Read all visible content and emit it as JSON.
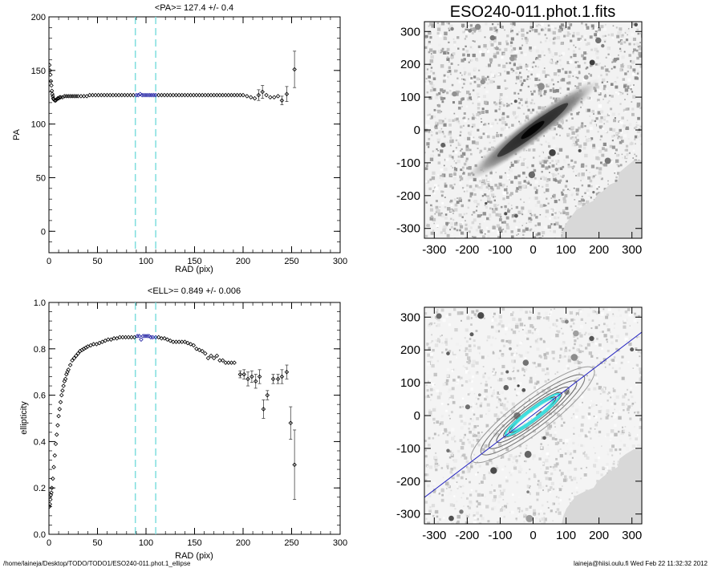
{
  "footer": {
    "path": "/home/laineja/Desktop/TODO/TODO1/ESO240-011.phot.1_ellipse",
    "user_date": "laineja@hiisi.oulu.fi  Wed Feb 22 11:32:32 2012"
  },
  "image_panels": {
    "title": "ESO240-011.phot.1.fits",
    "ticks": [
      "-300",
      "-200",
      "-100",
      "0",
      "100",
      "200",
      "300"
    ]
  },
  "colors": {
    "point": "#000000",
    "highlight": "#1a1aa0",
    "vline": "#7fdede",
    "majoraxis": "#2020c0",
    "contour_inner": "#40e0e0",
    "mask": "#d8d8d8"
  },
  "chart_data": [
    {
      "type": "scatter",
      "title": "<PA>= 127.4 +/-   0.4",
      "xlabel": "RAD (pix)",
      "ylabel": "PA",
      "xlim": [
        0,
        300
      ],
      "ylim": [
        -20,
        200
      ],
      "xticks": [
        "0",
        "50",
        "100",
        "150",
        "200",
        "250",
        "300"
      ],
      "yticks": [
        "0",
        "50",
        "100",
        "150",
        "200"
      ],
      "vlines": [
        89,
        110
      ],
      "highlight_range": [
        90,
        110
      ],
      "points": [
        [
          0.5,
          155
        ],
        [
          1,
          150
        ],
        [
          1.5,
          146
        ],
        [
          2,
          140
        ],
        [
          2.5,
          136
        ],
        [
          3,
          131
        ],
        [
          3.5,
          128
        ],
        [
          4,
          126
        ],
        [
          4.5,
          124
        ],
        [
          5,
          123
        ],
        [
          6,
          122
        ],
        [
          7,
          122
        ],
        [
          8,
          123
        ],
        [
          9,
          124
        ],
        [
          10,
          124
        ],
        [
          11,
          125
        ],
        [
          12,
          125
        ],
        [
          14,
          125
        ],
        [
          16,
          126
        ],
        [
          18,
          126
        ],
        [
          20,
          126
        ],
        [
          22,
          126
        ],
        [
          24,
          126
        ],
        [
          26,
          126
        ],
        [
          28,
          126
        ],
        [
          30,
          126
        ],
        [
          33,
          126
        ],
        [
          36,
          126
        ],
        [
          39,
          126
        ],
        [
          42,
          127
        ],
        [
          45,
          127
        ],
        [
          48,
          127
        ],
        [
          51,
          127
        ],
        [
          54,
          127
        ],
        [
          57,
          127
        ],
        [
          60,
          127
        ],
        [
          63,
          127
        ],
        [
          66,
          127
        ],
        [
          69,
          127
        ],
        [
          72,
          127
        ],
        [
          75,
          127
        ],
        [
          78,
          127
        ],
        [
          81,
          127
        ],
        [
          84,
          127
        ],
        [
          87,
          127
        ],
        [
          90,
          127
        ],
        [
          92,
          127
        ],
        [
          94,
          128
        ],
        [
          96,
          127
        ],
        [
          98,
          127
        ],
        [
          100,
          127
        ],
        [
          102,
          127
        ],
        [
          104,
          127
        ],
        [
          106,
          127
        ],
        [
          108,
          127
        ],
        [
          110,
          127
        ],
        [
          113,
          127
        ],
        [
          116,
          127
        ],
        [
          119,
          127
        ],
        [
          122,
          127
        ],
        [
          125,
          127
        ],
        [
          128,
          127
        ],
        [
          131,
          127
        ],
        [
          134,
          127
        ],
        [
          137,
          127
        ],
        [
          140,
          127
        ],
        [
          143,
          127
        ],
        [
          146,
          127
        ],
        [
          149,
          127
        ],
        [
          152,
          127
        ],
        [
          155,
          127
        ],
        [
          158,
          127
        ],
        [
          161,
          127
        ],
        [
          164,
          127
        ],
        [
          167,
          127
        ],
        [
          170,
          127
        ],
        [
          173,
          127
        ],
        [
          176,
          127
        ],
        [
          179,
          127
        ],
        [
          182,
          127
        ],
        [
          185,
          127
        ],
        [
          188,
          127
        ],
        [
          191,
          127
        ],
        [
          194,
          127
        ],
        [
          197,
          127
        ],
        [
          200,
          127
        ],
        [
          204,
          126
        ],
        [
          208,
          125
        ],
        [
          212,
          124
        ],
        [
          216,
          127
        ],
        [
          220,
          130
        ],
        [
          224,
          127
        ],
        [
          228,
          125
        ],
        [
          232,
          125
        ],
        [
          236,
          126
        ],
        [
          240,
          122
        ],
        [
          245,
          128
        ],
        [
          253,
          151
        ]
      ],
      "errors": [
        [
          216,
          127,
          5
        ],
        [
          220,
          130,
          6
        ],
        [
          240,
          122,
          4
        ],
        [
          245,
          128,
          7
        ],
        [
          253,
          151,
          17
        ]
      ]
    },
    {
      "type": "scatter",
      "title": "<ELL>= 0.849 +/-  0.006",
      "xlabel": "RAD (pix)",
      "ylabel": "ellipticity",
      "xlim": [
        0,
        300
      ],
      "ylim": [
        0.0,
        1.0
      ],
      "xticks": [
        "0",
        "50",
        "100",
        "150",
        "200",
        "250",
        "300"
      ],
      "yticks": [
        "0.0",
        "0.2",
        "0.4",
        "0.6",
        "0.8",
        "1.0"
      ],
      "vlines": [
        89,
        110
      ],
      "highlight_range": [
        90,
        110
      ],
      "points": [
        [
          0.5,
          0.12
        ],
        [
          1,
          0.13
        ],
        [
          1.5,
          0.15
        ],
        [
          2,
          0.17
        ],
        [
          2.5,
          0.18
        ],
        [
          3,
          0.2
        ],
        [
          4,
          0.24
        ],
        [
          5,
          0.29
        ],
        [
          6,
          0.34
        ],
        [
          7,
          0.39
        ],
        [
          8,
          0.43
        ],
        [
          9,
          0.47
        ],
        [
          10,
          0.51
        ],
        [
          11,
          0.54
        ],
        [
          12,
          0.57
        ],
        [
          13,
          0.6
        ],
        [
          14,
          0.62
        ],
        [
          15,
          0.64
        ],
        [
          16,
          0.66
        ],
        [
          17,
          0.67
        ],
        [
          18,
          0.69
        ],
        [
          19,
          0.7
        ],
        [
          20,
          0.71
        ],
        [
          22,
          0.73
        ],
        [
          24,
          0.75
        ],
        [
          26,
          0.76
        ],
        [
          28,
          0.77
        ],
        [
          30,
          0.78
        ],
        [
          32,
          0.79
        ],
        [
          34,
          0.795
        ],
        [
          36,
          0.8
        ],
        [
          38,
          0.805
        ],
        [
          40,
          0.81
        ],
        [
          43,
          0.815
        ],
        [
          46,
          0.82
        ],
        [
          49,
          0.82
        ],
        [
          52,
          0.825
        ],
        [
          55,
          0.83
        ],
        [
          58,
          0.835
        ],
        [
          61,
          0.84
        ],
        [
          64,
          0.84
        ],
        [
          67,
          0.845
        ],
        [
          70,
          0.845
        ],
        [
          73,
          0.85
        ],
        [
          76,
          0.85
        ],
        [
          79,
          0.85
        ],
        [
          82,
          0.85
        ],
        [
          85,
          0.85
        ],
        [
          88,
          0.85
        ],
        [
          91,
          0.855
        ],
        [
          93,
          0.855
        ],
        [
          95,
          0.84
        ],
        [
          97,
          0.855
        ],
        [
          99,
          0.855
        ],
        [
          101,
          0.855
        ],
        [
          103,
          0.855
        ],
        [
          105,
          0.85
        ],
        [
          107,
          0.85
        ],
        [
          110,
          0.85
        ],
        [
          113,
          0.85
        ],
        [
          116,
          0.845
        ],
        [
          119,
          0.845
        ],
        [
          122,
          0.84
        ],
        [
          125,
          0.835
        ],
        [
          128,
          0.83
        ],
        [
          131,
          0.83
        ],
        [
          134,
          0.83
        ],
        [
          137,
          0.83
        ],
        [
          140,
          0.83
        ],
        [
          143,
          0.825
        ],
        [
          146,
          0.82
        ],
        [
          149,
          0.815
        ],
        [
          152,
          0.8
        ],
        [
          155,
          0.795
        ],
        [
          158,
          0.79
        ],
        [
          161,
          0.78
        ],
        [
          164,
          0.76
        ],
        [
          167,
          0.77
        ],
        [
          170,
          0.76
        ],
        [
          173,
          0.77
        ],
        [
          176,
          0.75
        ],
        [
          179,
          0.75
        ],
        [
          182,
          0.74
        ],
        [
          185,
          0.74
        ],
        [
          188,
          0.74
        ],
        [
          191,
          0.74
        ],
        [
          197,
          0.69
        ],
        [
          201,
          0.69
        ],
        [
          205,
          0.67
        ],
        [
          209,
          0.68
        ],
        [
          213,
          0.66
        ],
        [
          217,
          0.68
        ],
        [
          221,
          0.54
        ],
        [
          225,
          0.6
        ],
        [
          231,
          0.67
        ],
        [
          236,
          0.67
        ],
        [
          240,
          0.68
        ],
        [
          245,
          0.7
        ],
        [
          249,
          0.48
        ],
        [
          253,
          0.3
        ]
      ],
      "errors": [
        [
          197,
          0.69,
          0.015
        ],
        [
          201,
          0.69,
          0.02
        ],
        [
          205,
          0.67,
          0.03
        ],
        [
          209,
          0.68,
          0.025
        ],
        [
          213,
          0.66,
          0.03
        ],
        [
          217,
          0.68,
          0.03
        ],
        [
          221,
          0.54,
          0.04
        ],
        [
          225,
          0.6,
          0.02
        ],
        [
          231,
          0.67,
          0.02
        ],
        [
          236,
          0.67,
          0.02
        ],
        [
          240,
          0.68,
          0.03
        ],
        [
          245,
          0.7,
          0.03
        ],
        [
          249,
          0.48,
          0.07
        ],
        [
          253,
          0.3,
          0.15
        ]
      ]
    }
  ]
}
